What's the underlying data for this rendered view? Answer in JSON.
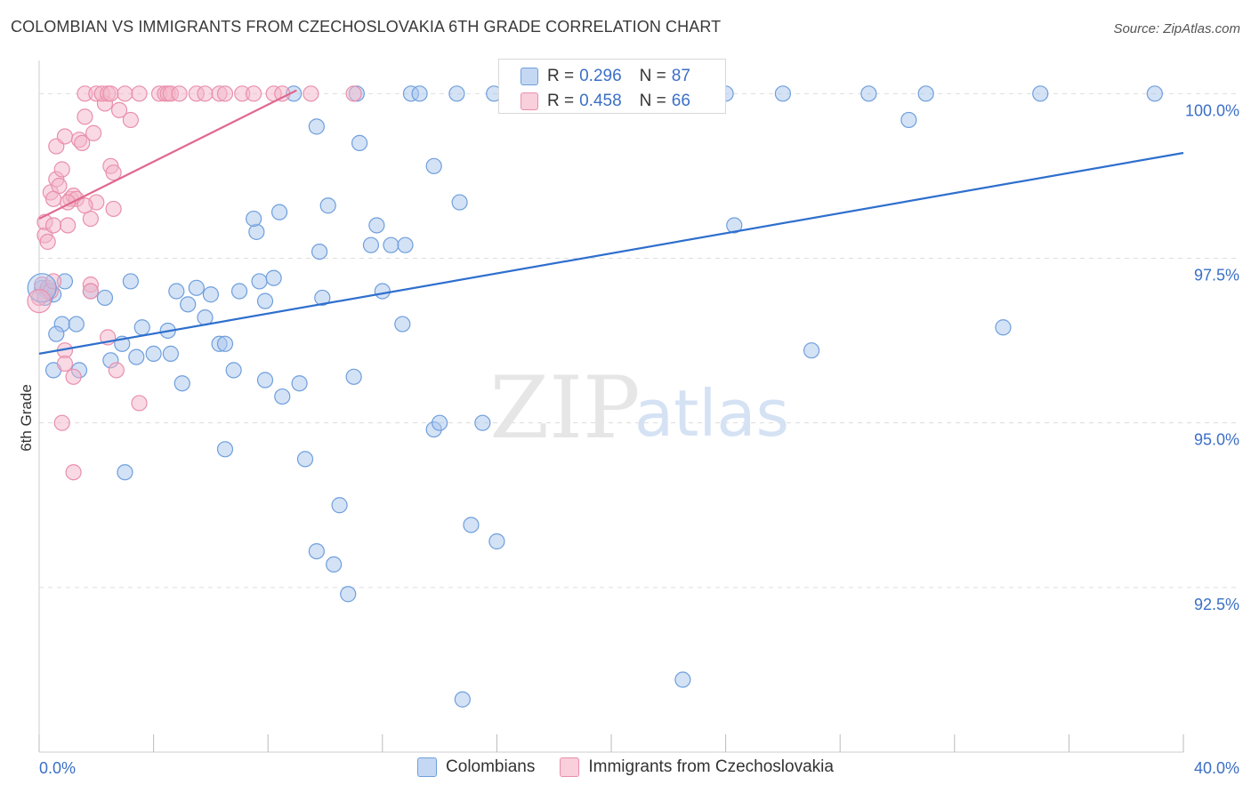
{
  "title": "COLOMBIAN VS IMMIGRANTS FROM CZECHOSLOVAKIA 6TH GRADE CORRELATION CHART",
  "source": "Source: ZipAtlas.com",
  "watermark": {
    "zip": "ZIP",
    "atlas": "atlas"
  },
  "colors": {
    "blue_fill": "#a9c6ee",
    "blue_stroke": "#6e9fdc",
    "blue_line": "#2e6fcd",
    "pink_fill": "#f4b6c9",
    "pink_stroke": "#e98fac",
    "pink_line": "#e0688f",
    "grid": "#dddddd",
    "axis_text_blue": "#3b6fc6"
  },
  "legend": {
    "r_label": "R =",
    "n_label": "N =",
    "series": [
      {
        "r": "0.296",
        "n": "87"
      },
      {
        "r": "0.458",
        "n": "66"
      }
    ]
  },
  "chart_data": {
    "type": "scatter",
    "title": "COLOMBIAN VS IMMIGRANTS FROM CZECHOSLOVAKIA 6TH GRADE CORRELATION CHART",
    "xlabel": "",
    "ylabel": "6th Grade",
    "xlim": [
      0,
      40
    ],
    "ylim": [
      90.0,
      100.45
    ],
    "x_tick_labels": [
      "0.0%",
      "40.0%"
    ],
    "y_ticks": [
      92.5,
      95.0,
      97.5,
      100.0
    ],
    "y_tick_labels": [
      "92.5%",
      "95.0%",
      "97.5%",
      "100.0%"
    ],
    "grid": true,
    "legend_position": "top-center",
    "series": [
      {
        "name": "Colombians",
        "color": "#a9c6ee",
        "r": 0.296,
        "n": 87,
        "trend": {
          "x": [
            0,
            40
          ],
          "y": [
            96.05,
            99.1
          ]
        },
        "points": [
          [
            0.1,
            97.05
          ],
          [
            0.3,
            97.0
          ],
          [
            0.5,
            96.95
          ],
          [
            0.9,
            97.15
          ],
          [
            1.8,
            97.0
          ],
          [
            0.2,
            96.9
          ],
          [
            0.8,
            96.5
          ],
          [
            1.3,
            96.5
          ],
          [
            0.6,
            96.35
          ],
          [
            2.3,
            96.9
          ],
          [
            3.2,
            97.15
          ],
          [
            3.6,
            96.45
          ],
          [
            4.8,
            97.0
          ],
          [
            5.5,
            97.05
          ],
          [
            6.0,
            96.95
          ],
          [
            5.8,
            96.6
          ],
          [
            4.6,
            96.05
          ],
          [
            3.4,
            96.0
          ],
          [
            2.5,
            95.95
          ],
          [
            1.4,
            95.8
          ],
          [
            2.9,
            96.2
          ],
          [
            5.2,
            96.8
          ],
          [
            7.0,
            97.0
          ],
          [
            7.7,
            97.15
          ],
          [
            8.2,
            97.2
          ],
          [
            7.9,
            96.85
          ],
          [
            6.3,
            96.2
          ],
          [
            6.5,
            96.2
          ],
          [
            6.8,
            95.8
          ],
          [
            4.5,
            96.4
          ],
          [
            4.0,
            96.05
          ],
          [
            5.0,
            95.6
          ],
          [
            7.9,
            95.65
          ],
          [
            8.5,
            95.4
          ],
          [
            9.1,
            95.6
          ],
          [
            11.0,
            95.7
          ],
          [
            9.9,
            96.9
          ],
          [
            12.0,
            97.0
          ],
          [
            12.7,
            96.5
          ],
          [
            9.8,
            97.6
          ],
          [
            11.8,
            98.0
          ],
          [
            11.6,
            97.7
          ],
          [
            12.3,
            97.7
          ],
          [
            12.8,
            97.7
          ],
          [
            7.6,
            97.9
          ],
          [
            7.5,
            98.1
          ],
          [
            8.4,
            98.2
          ],
          [
            10.1,
            98.3
          ],
          [
            14.7,
            98.35
          ],
          [
            13.8,
            98.9
          ],
          [
            11.2,
            99.25
          ],
          [
            9.7,
            99.5
          ],
          [
            24.3,
            98.0
          ],
          [
            8.9,
            100.0
          ],
          [
            11.1,
            100.0
          ],
          [
            13.0,
            100.0
          ],
          [
            13.3,
            100.0
          ],
          [
            14.6,
            100.0
          ],
          [
            15.9,
            100.0
          ],
          [
            17.0,
            100.0
          ],
          [
            18.0,
            100.0
          ],
          [
            20.0,
            100.0
          ],
          [
            22.0,
            100.0
          ],
          [
            24.0,
            100.0
          ],
          [
            26.0,
            100.0
          ],
          [
            29.0,
            100.0
          ],
          [
            31.0,
            100.0
          ],
          [
            35.0,
            100.0
          ],
          [
            39.0,
            100.0
          ],
          [
            30.4,
            99.6
          ],
          [
            33.7,
            96.45
          ],
          [
            27.0,
            96.1
          ],
          [
            13.8,
            94.9
          ],
          [
            14.0,
            95.0
          ],
          [
            15.5,
            95.0
          ],
          [
            6.5,
            94.6
          ],
          [
            9.3,
            94.45
          ],
          [
            3.0,
            94.25
          ],
          [
            10.5,
            93.75
          ],
          [
            15.1,
            93.45
          ],
          [
            16.0,
            93.2
          ],
          [
            9.7,
            93.05
          ],
          [
            10.3,
            92.85
          ],
          [
            10.8,
            92.4
          ],
          [
            22.5,
            91.1
          ],
          [
            14.8,
            90.8
          ],
          [
            0.5,
            95.8
          ]
        ]
      },
      {
        "name": "Immigrants from Czechoslovakia",
        "color": "#f4b6c9",
        "r": 0.458,
        "n": 66,
        "trend": {
          "x": [
            0,
            9.0
          ],
          "y": [
            98.1,
            100.05
          ]
        },
        "points": [
          [
            0.0,
            96.9
          ],
          [
            0.1,
            97.1
          ],
          [
            0.2,
            97.85
          ],
          [
            0.3,
            97.75
          ],
          [
            0.2,
            98.05
          ],
          [
            0.5,
            98.0
          ],
          [
            0.4,
            98.5
          ],
          [
            0.6,
            98.7
          ],
          [
            0.7,
            98.6
          ],
          [
            0.8,
            98.85
          ],
          [
            0.6,
            99.2
          ],
          [
            0.9,
            99.35
          ],
          [
            1.1,
            98.4
          ],
          [
            1.2,
            98.45
          ],
          [
            1.3,
            98.4
          ],
          [
            1.0,
            98.35
          ],
          [
            1.4,
            99.3
          ],
          [
            1.6,
            99.65
          ],
          [
            1.9,
            99.4
          ],
          [
            2.0,
            98.35
          ],
          [
            1.8,
            98.1
          ],
          [
            2.3,
            99.85
          ],
          [
            2.5,
            98.9
          ],
          [
            2.6,
            98.8
          ],
          [
            2.6,
            98.25
          ],
          [
            2.8,
            99.75
          ],
          [
            3.2,
            99.6
          ],
          [
            1.5,
            99.25
          ],
          [
            1.6,
            100.0
          ],
          [
            2.0,
            100.0
          ],
          [
            2.2,
            100.0
          ],
          [
            2.4,
            100.0
          ],
          [
            2.5,
            100.0
          ],
          [
            3.0,
            100.0
          ],
          [
            3.5,
            100.0
          ],
          [
            4.2,
            100.0
          ],
          [
            4.4,
            100.0
          ],
          [
            4.5,
            100.0
          ],
          [
            4.6,
            100.0
          ],
          [
            4.9,
            100.0
          ],
          [
            5.5,
            100.0
          ],
          [
            5.8,
            100.0
          ],
          [
            6.3,
            100.0
          ],
          [
            6.5,
            100.0
          ],
          [
            7.1,
            100.0
          ],
          [
            7.5,
            100.0
          ],
          [
            8.2,
            100.0
          ],
          [
            8.5,
            100.0
          ],
          [
            9.5,
            100.0
          ],
          [
            11.0,
            100.0
          ],
          [
            1.8,
            97.1
          ],
          [
            1.8,
            97.0
          ],
          [
            0.9,
            96.1
          ],
          [
            2.4,
            96.3
          ],
          [
            0.9,
            95.9
          ],
          [
            1.2,
            95.7
          ],
          [
            2.7,
            95.8
          ],
          [
            3.5,
            95.3
          ],
          [
            0.8,
            95.0
          ],
          [
            1.2,
            94.25
          ],
          [
            0.3,
            97.05
          ],
          [
            0.4,
            97.0
          ],
          [
            0.5,
            97.15
          ],
          [
            1.0,
            98.0
          ],
          [
            0.5,
            98.4
          ],
          [
            1.6,
            98.3
          ]
        ]
      }
    ]
  }
}
